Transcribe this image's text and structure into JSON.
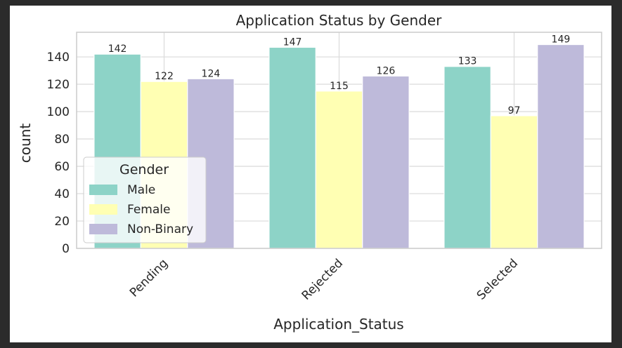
{
  "chart_data": {
    "type": "bar",
    "title": "Application Status by Gender",
    "xlabel": "Application_Status",
    "ylabel": "count",
    "categories": [
      "Pending",
      "Rejected",
      "Selected"
    ],
    "series": [
      {
        "name": "Male",
        "values": [
          142,
          147,
          133
        ],
        "color": "#8dd3c7"
      },
      {
        "name": "Female",
        "values": [
          122,
          115,
          97
        ],
        "color": "#ffffb3"
      },
      {
        "name": "Non-Binary",
        "values": [
          124,
          126,
          149
        ],
        "color": "#bebada"
      }
    ],
    "ylim": [
      0,
      158
    ],
    "yticks": [
      0,
      20,
      40,
      60,
      80,
      100,
      120,
      140
    ],
    "grid": true,
    "legend": {
      "title": "Gender",
      "placement": "lower-left"
    },
    "data_labels": true
  }
}
